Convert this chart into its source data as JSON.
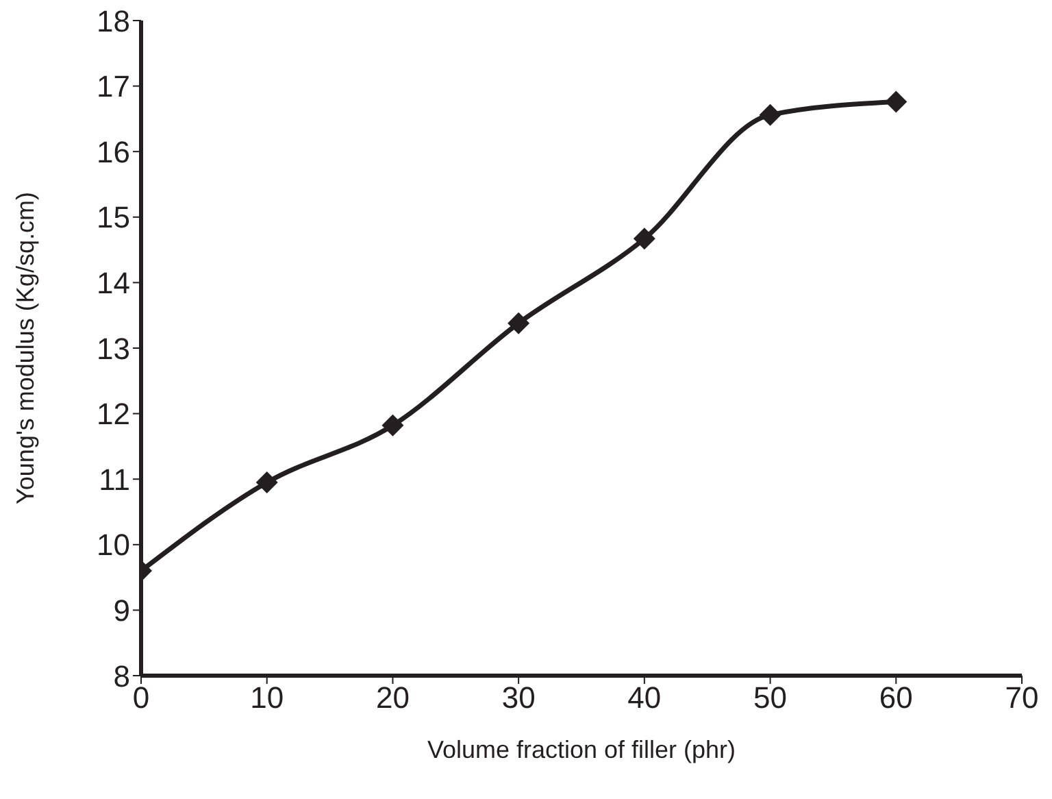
{
  "chart_data": {
    "type": "line",
    "xlabel": "Volume fraction of filler (phr)",
    "ylabel": "Young's modulus (Kg/sq.cm)",
    "x": [
      0,
      10,
      20,
      30,
      40,
      50,
      60
    ],
    "series": [
      {
        "color": "#231f20",
        "values": [
          9.6,
          10.95,
          11.82,
          13.38,
          14.67,
          16.56,
          16.76
        ]
      }
    ],
    "xlim": [
      0,
      70
    ],
    "xticks": [
      0,
      10,
      20,
      30,
      40,
      50,
      60,
      70
    ],
    "ylim": [
      8,
      18
    ],
    "yticks": [
      8,
      9,
      10,
      11,
      12,
      13,
      14,
      15,
      16,
      17,
      18
    ],
    "grid": false,
    "legend": false,
    "marker": "diamond",
    "line_style": "solid"
  }
}
